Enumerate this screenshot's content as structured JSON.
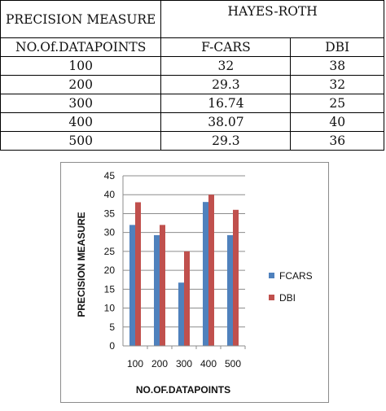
{
  "table": {
    "header_left": "PRECISION MEASURE",
    "group_header": "HAYES-ROTH",
    "col_label": "NO.Of.DATAPOINTS",
    "col_fcars": "F-CARS",
    "col_dbi": "DBI",
    "rows": [
      {
        "points": "100",
        "fcars": "32",
        "dbi": "38"
      },
      {
        "points": "200",
        "fcars": "29.3",
        "dbi": "32"
      },
      {
        "points": "300",
        "fcars": "16.74",
        "dbi": "25"
      },
      {
        "points": "400",
        "fcars": "38.07",
        "dbi": "40"
      },
      {
        "points": "500",
        "fcars": "29.3",
        "dbi": "36"
      }
    ]
  },
  "chart_data": {
    "type": "bar",
    "categories": [
      "100",
      "200",
      "300",
      "400",
      "500"
    ],
    "series": [
      {
        "name": "FCARS",
        "values": [
          32,
          29.3,
          16.74,
          38.07,
          29.3
        ],
        "color": "#4f81bd"
      },
      {
        "name": "DBI",
        "values": [
          38,
          32,
          25,
          40,
          36
        ],
        "color": "#c0504d"
      }
    ],
    "title": "",
    "xlabel": "NO.OF.DATAPOINTS",
    "ylabel": "PRECISION MEASURE",
    "ylim": [
      0,
      45
    ],
    "yticks": [
      "0",
      "5",
      "10",
      "15",
      "20",
      "25",
      "30",
      "35",
      "40",
      "45"
    ],
    "grid": true,
    "legend_position": "right"
  }
}
